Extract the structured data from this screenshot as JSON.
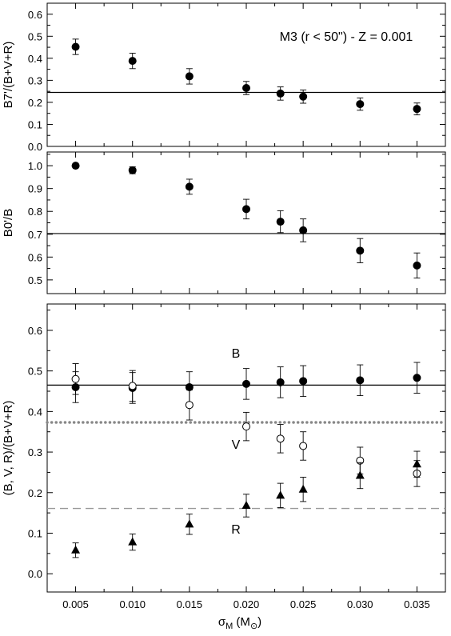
{
  "chart_data": [
    {
      "type": "scatter",
      "title": "",
      "xlabel": "",
      "ylabel": "B7'/(B+V+R)",
      "xlim": [
        0.0025,
        0.0375
      ],
      "ylim": [
        0.0,
        0.65
      ],
      "yticks": [
        "0.0",
        "0.1",
        "0.2",
        "0.3",
        "0.4",
        "0.5",
        "0.6"
      ],
      "xticks": [],
      "annotations": [
        {
          "text": "M3 (r < 50\") - Z = 0.001"
        }
      ],
      "hlines": [
        {
          "y": 0.245,
          "style": "solid"
        }
      ],
      "series": [
        {
          "marker": "filled-circle",
          "x": [
            0.005,
            0.01,
            0.015,
            0.02,
            0.023,
            0.025,
            0.03,
            0.035
          ],
          "y": [
            0.452,
            0.388,
            0.318,
            0.265,
            0.24,
            0.226,
            0.192,
            0.17
          ],
          "err": [
            0.035,
            0.035,
            0.035,
            0.03,
            0.03,
            0.03,
            0.028,
            0.027
          ]
        }
      ]
    },
    {
      "type": "scatter",
      "title": "",
      "xlabel": "",
      "ylabel": "B0'/B",
      "xlim": [
        0.0025,
        0.0375
      ],
      "ylim": [
        0.44,
        1.06
      ],
      "yticks": [
        "0.5",
        "0.6",
        "0.7",
        "0.8",
        "0.9",
        "1.0"
      ],
      "xticks": [],
      "annotations": [],
      "hlines": [
        {
          "y": 0.703,
          "style": "solid"
        }
      ],
      "series": [
        {
          "marker": "filled-circle",
          "x": [
            0.005,
            0.01,
            0.015,
            0.02,
            0.023,
            0.025,
            0.03,
            0.035
          ],
          "y": [
            1.0,
            0.98,
            0.908,
            0.81,
            0.755,
            0.717,
            0.628,
            0.563
          ],
          "err": [
            0.0,
            0.015,
            0.033,
            0.043,
            0.048,
            0.05,
            0.053,
            0.055
          ]
        }
      ]
    },
    {
      "type": "scatter",
      "title": "",
      "xlabel": "σM (M⊙)",
      "ylabel": "(B, V, R)/(B+V+R)",
      "xlim": [
        0.0025,
        0.0375
      ],
      "ylim": [
        -0.045,
        0.665
      ],
      "yticks": [
        "0.0",
        "0.1",
        "0.2",
        "0.3",
        "0.4",
        "0.5",
        "0.6"
      ],
      "xticks": [
        "0.005",
        "0.010",
        "0.015",
        "0.020",
        "0.025",
        "0.030",
        "0.035"
      ],
      "annotations": [
        {
          "text": "B"
        },
        {
          "text": "V"
        },
        {
          "text": "R"
        }
      ],
      "hlines": [
        {
          "y": 0.465,
          "style": "solid"
        },
        {
          "y": 0.373,
          "style": "dotted"
        },
        {
          "y": 0.161,
          "style": "dashed"
        }
      ],
      "series": [
        {
          "marker": "filled-circle",
          "x": [
            0.005,
            0.01,
            0.015,
            0.02,
            0.023,
            0.025,
            0.03,
            0.035
          ],
          "y": [
            0.46,
            0.458,
            0.46,
            0.468,
            0.472,
            0.475,
            0.477,
            0.483
          ],
          "err": [
            0.038,
            0.038,
            0.038,
            0.038,
            0.038,
            0.038,
            0.038,
            0.038
          ]
        },
        {
          "marker": "open-circle",
          "x": [
            0.005,
            0.01,
            0.015,
            0.02,
            0.023,
            0.025,
            0.03,
            0.035
          ],
          "y": [
            0.48,
            0.463,
            0.416,
            0.363,
            0.333,
            0.315,
            0.279,
            0.247
          ],
          "err": [
            0.038,
            0.038,
            0.037,
            0.035,
            0.035,
            0.035,
            0.033,
            0.032
          ]
        },
        {
          "marker": "filled-triangle",
          "x": [
            0.005,
            0.01,
            0.015,
            0.02,
            0.023,
            0.025,
            0.03,
            0.035
          ],
          "y": [
            0.058,
            0.078,
            0.122,
            0.168,
            0.193,
            0.208,
            0.242,
            0.27
          ],
          "err": [
            0.018,
            0.02,
            0.025,
            0.028,
            0.03,
            0.03,
            0.032,
            0.032
          ]
        }
      ]
    }
  ]
}
